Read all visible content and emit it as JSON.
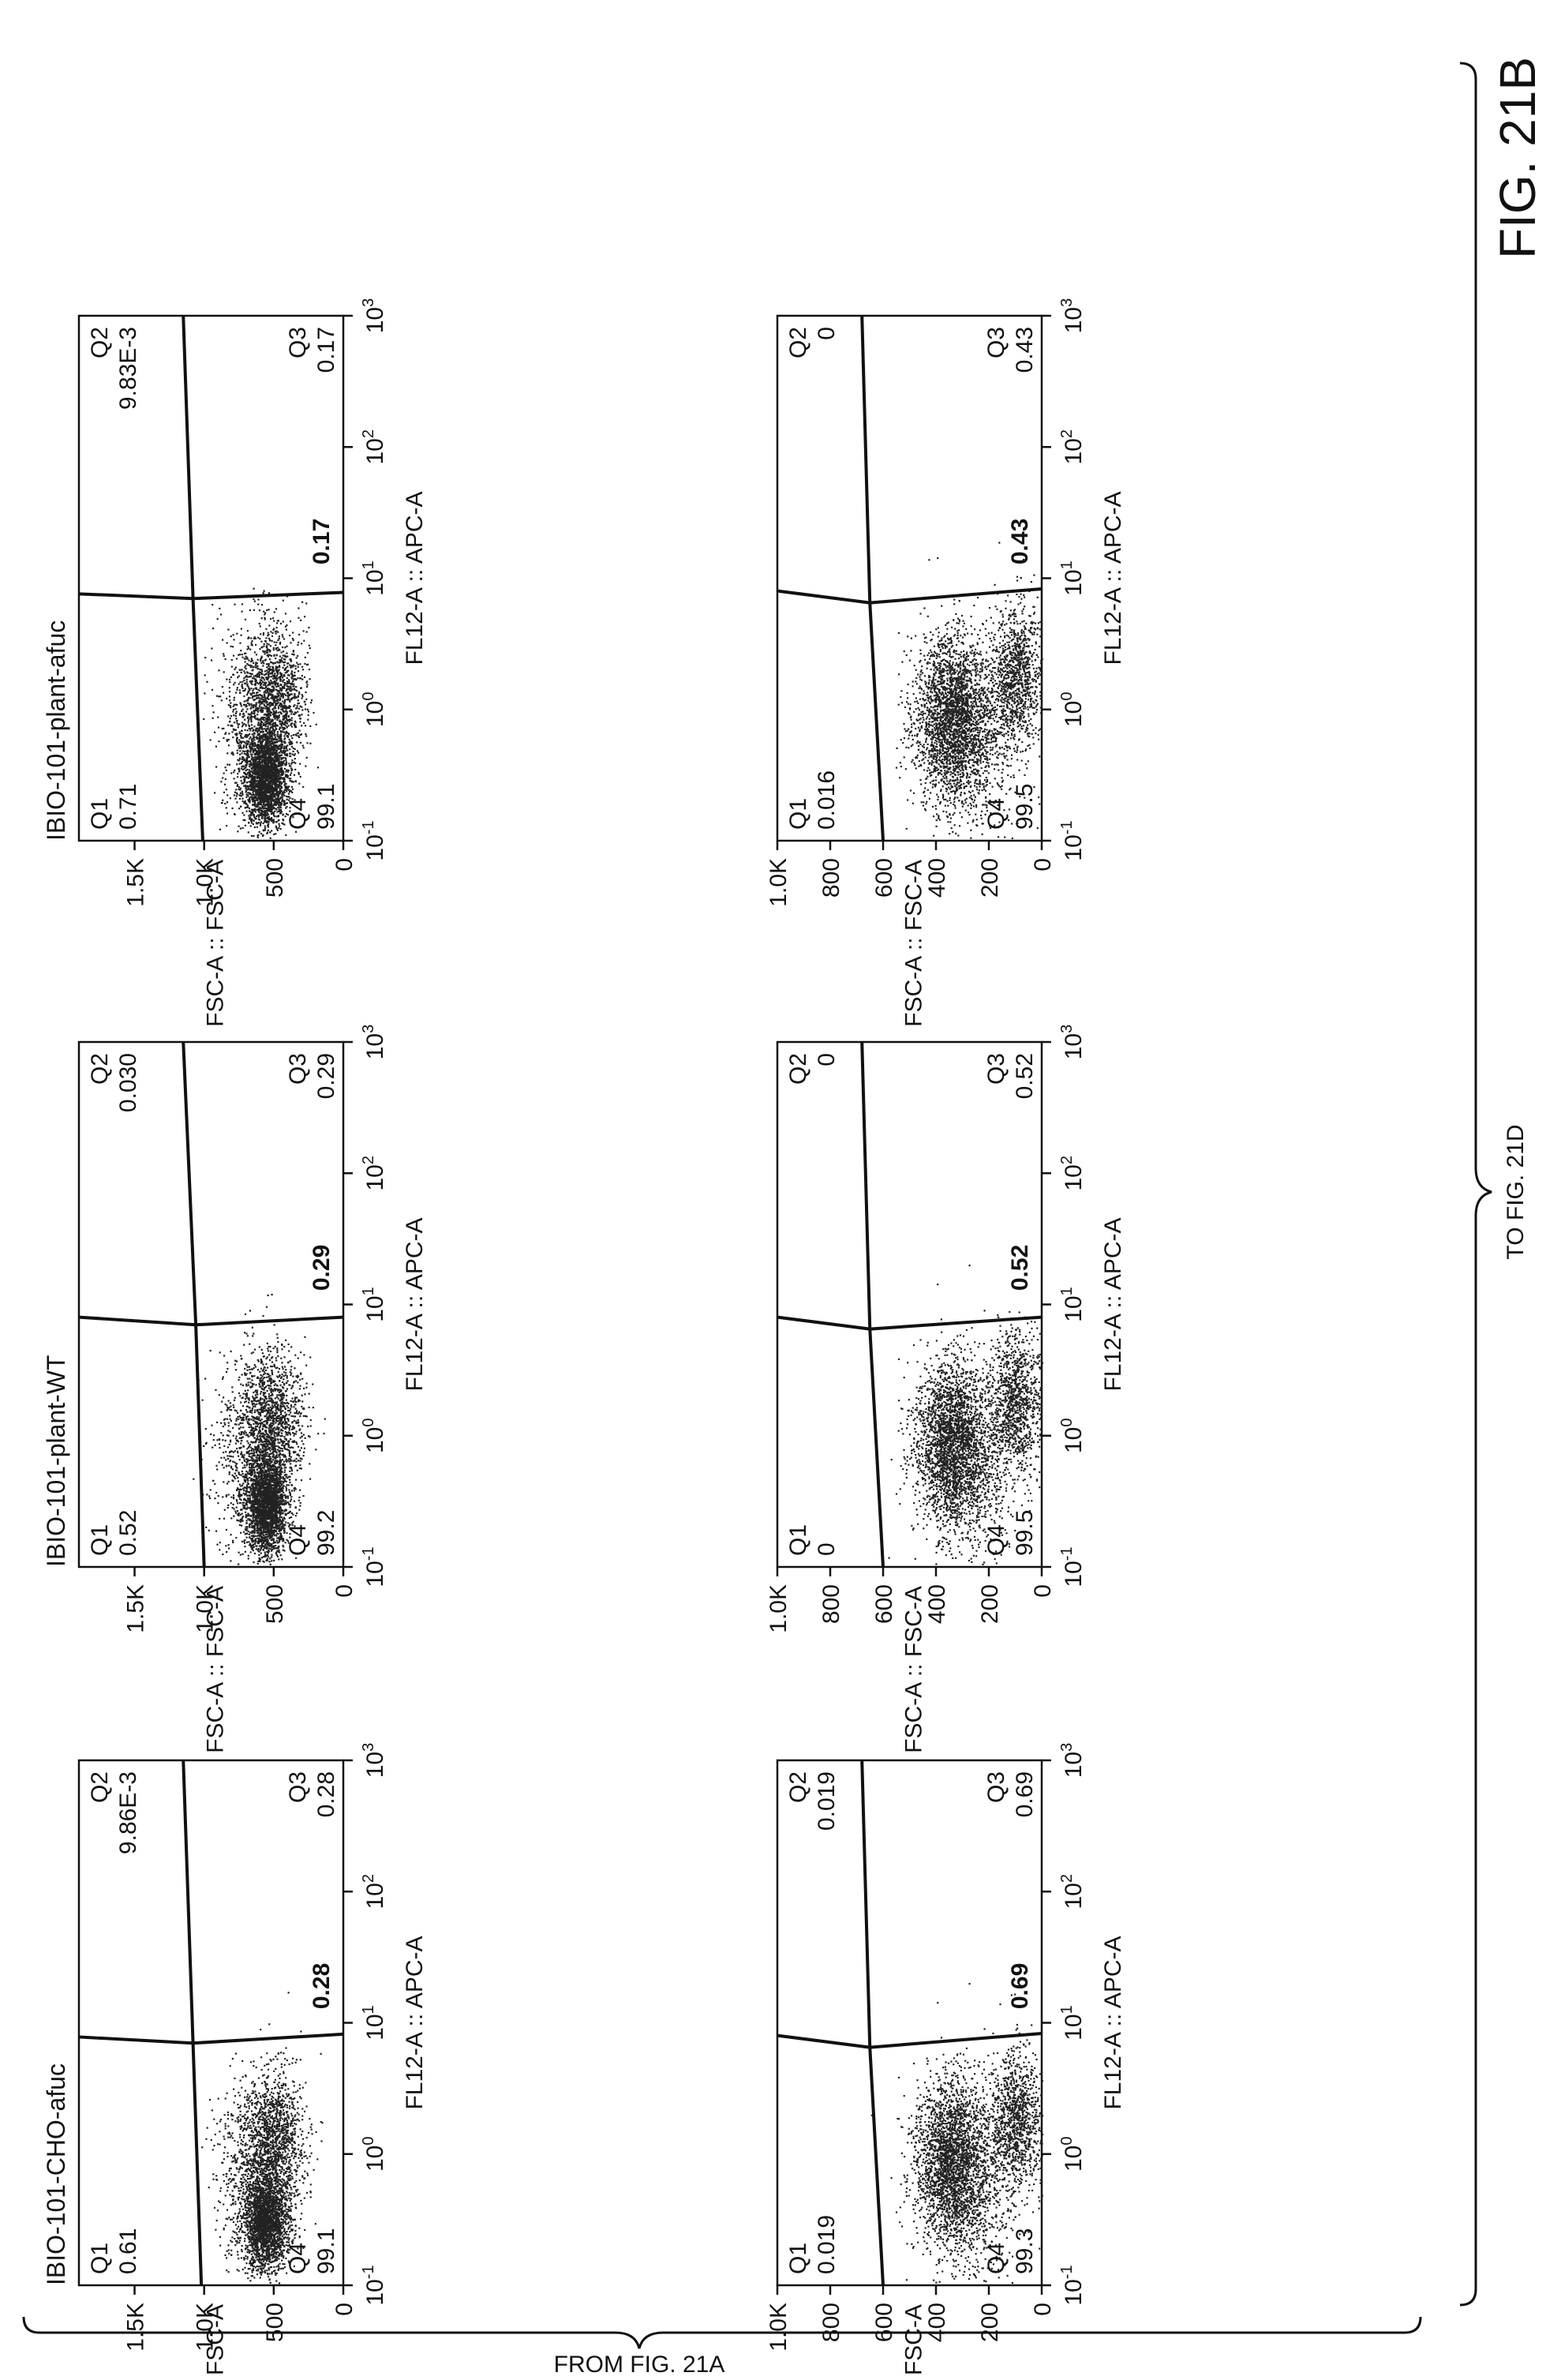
{
  "figure": {
    "label": "FIG. 21B",
    "from_note": "FROM FIG. 21A",
    "to_note": "TO FIG. 21D"
  },
  "chart_data": [
    {
      "type": "scatter",
      "title": "IBIO-101-CHO-afuc",
      "xlabel": "FL12-A :: APC-A",
      "ylabel": "FSC-A :: FSC-A",
      "xscale": "log",
      "xlim": [
        0.1,
        1000
      ],
      "xticks": [
        0.1,
        1,
        10,
        100,
        1000
      ],
      "xtick_labels": [
        {
          "base": "10",
          "exp": "-1"
        },
        {
          "base": "10",
          "exp": "0"
        },
        {
          "base": "10",
          "exp": "1"
        },
        {
          "base": "10",
          "exp": "2"
        },
        {
          "base": "10",
          "exp": "3"
        }
      ],
      "ylim": [
        0,
        1900
      ],
      "yticks": [
        0,
        500,
        1000,
        1500
      ],
      "ytick_labels": [
        "0",
        "500",
        "1.0K",
        "1.5K"
      ],
      "gate": {
        "vertical_top_x": 7.8,
        "vertical_bottom_x": 8.2,
        "center": [
          7.0,
          1080
        ],
        "left_y": 1020,
        "right_y": 1150
      },
      "center_value": "0.28",
      "quadrants": [
        {
          "name": "Q1",
          "value": "0.61",
          "position": "top-left"
        },
        {
          "name": "Q2",
          "value": "9.86E-3",
          "position": "top-right"
        },
        {
          "name": "Q3",
          "value": "0.28",
          "position": "bottom-right"
        },
        {
          "name": "Q4",
          "value": "99.1",
          "position": "bottom-left"
        }
      ],
      "clusters": [
        {
          "x": 0.3,
          "y": 560,
          "sx": 0.2,
          "sy": 80,
          "n": 2200
        },
        {
          "x": 1.2,
          "y": 500,
          "sx": 0.3,
          "sy": 110,
          "n": 1400
        },
        {
          "x": 0.8,
          "y": 700,
          "sx": 0.4,
          "sy": 120,
          "n": 500
        }
      ]
    },
    {
      "type": "scatter",
      "title": "IBIO-101-plant-WT",
      "xlabel": "FL12-A :: APC-A",
      "ylabel": "FSC-A :: FSC-A",
      "xscale": "log",
      "xlim": [
        0.1,
        1000
      ],
      "xticks": [
        0.1,
        1,
        10,
        100,
        1000
      ],
      "xtick_labels": [
        {
          "base": "10",
          "exp": "-1"
        },
        {
          "base": "10",
          "exp": "0"
        },
        {
          "base": "10",
          "exp": "1"
        },
        {
          "base": "10",
          "exp": "2"
        },
        {
          "base": "10",
          "exp": "3"
        }
      ],
      "ylim": [
        0,
        1900
      ],
      "yticks": [
        0,
        500,
        1000,
        1500
      ],
      "ytick_labels": [
        "0",
        "500",
        "1.0K",
        "1.5K"
      ],
      "gate": {
        "vertical_top_x": 8.0,
        "vertical_bottom_x": 8.0,
        "center": [
          7.0,
          1060
        ],
        "left_y": 1000,
        "right_y": 1150
      },
      "center_value": "0.29",
      "quadrants": [
        {
          "name": "Q1",
          "value": "0.52",
          "position": "top-left"
        },
        {
          "name": "Q2",
          "value": "0.030",
          "position": "top-right"
        },
        {
          "name": "Q3",
          "value": "0.29",
          "position": "bottom-right"
        },
        {
          "name": "Q4",
          "value": "99.2",
          "position": "bottom-left"
        }
      ],
      "clusters": [
        {
          "x": 0.3,
          "y": 560,
          "sx": 0.2,
          "sy": 80,
          "n": 2400
        },
        {
          "x": 1.3,
          "y": 510,
          "sx": 0.3,
          "sy": 110,
          "n": 1300
        },
        {
          "x": 0.9,
          "y": 720,
          "sx": 0.4,
          "sy": 120,
          "n": 500
        }
      ]
    },
    {
      "type": "scatter",
      "title": "IBIO-101-plant-afuc",
      "xlabel": "FL12-A :: APC-A",
      "ylabel": "FSC-A :: FSC-A",
      "xscale": "log",
      "xlim": [
        0.1,
        1000
      ],
      "xticks": [
        0.1,
        1,
        10,
        100,
        1000
      ],
      "xtick_labels": [
        {
          "base": "10",
          "exp": "-1"
        },
        {
          "base": "10",
          "exp": "0"
        },
        {
          "base": "10",
          "exp": "1"
        },
        {
          "base": "10",
          "exp": "2"
        },
        {
          "base": "10",
          "exp": "3"
        }
      ],
      "ylim": [
        0,
        1900
      ],
      "yticks": [
        0,
        500,
        1000,
        1500
      ],
      "ytick_labels": [
        "0",
        "500",
        "1.0K",
        "1.5K"
      ],
      "gate": {
        "vertical_top_x": 7.6,
        "vertical_bottom_x": 7.8,
        "center": [
          7.0,
          1080
        ],
        "left_y": 1010,
        "right_y": 1150
      },
      "center_value": "0.17",
      "quadrants": [
        {
          "name": "Q1",
          "value": "0.71",
          "position": "top-left"
        },
        {
          "name": "Q2",
          "value": "9.83E-3",
          "position": "top-right"
        },
        {
          "name": "Q3",
          "value": "0.17",
          "position": "bottom-right"
        },
        {
          "name": "Q4",
          "value": "99.1",
          "position": "bottom-left"
        }
      ],
      "clusters": [
        {
          "x": 0.3,
          "y": 560,
          "sx": 0.2,
          "sy": 80,
          "n": 2200
        },
        {
          "x": 1.2,
          "y": 500,
          "sx": 0.3,
          "sy": 110,
          "n": 1400
        },
        {
          "x": 0.8,
          "y": 700,
          "sx": 0.4,
          "sy": 120,
          "n": 500
        }
      ]
    },
    {
      "type": "scatter",
      "title": "",
      "xlabel": "FL12-A :: APC-A",
      "ylabel": "FSC-A :: FSC-A",
      "xscale": "log",
      "xlim": [
        0.1,
        1000
      ],
      "xticks": [
        0.1,
        1,
        10,
        100,
        1000
      ],
      "xtick_labels": [
        {
          "base": "10",
          "exp": "-1"
        },
        {
          "base": "10",
          "exp": "0"
        },
        {
          "base": "10",
          "exp": "1"
        },
        {
          "base": "10",
          "exp": "2"
        },
        {
          "base": "10",
          "exp": "3"
        }
      ],
      "ylim": [
        0,
        1000
      ],
      "yticks": [
        0,
        200,
        400,
        600,
        800,
        1000
      ],
      "ytick_labels": [
        "0",
        "200",
        "400",
        "600",
        "800",
        "1.0K"
      ],
      "gate": {
        "vertical_top_x": 8.0,
        "vertical_bottom_x": 8.3,
        "center": [
          6.5,
          650
        ],
        "left_y": 600,
        "right_y": 680
      },
      "center_value": "0.69",
      "quadrants": [
        {
          "name": "Q1",
          "value": "0.019",
          "position": "top-left"
        },
        {
          "name": "Q2",
          "value": "0.019",
          "position": "top-right"
        },
        {
          "name": "Q3",
          "value": "0.69",
          "position": "bottom-right"
        },
        {
          "name": "Q4",
          "value": "99.3",
          "position": "bottom-left"
        }
      ],
      "clusters": [
        {
          "x": 0.9,
          "y": 340,
          "sx": 0.35,
          "sy": 70,
          "n": 2500
        },
        {
          "x": 1.8,
          "y": 100,
          "sx": 0.3,
          "sy": 50,
          "n": 1100
        },
        {
          "x": 0.5,
          "y": 260,
          "sx": 0.35,
          "sy": 90,
          "n": 500
        }
      ]
    },
    {
      "type": "scatter",
      "title": "",
      "xlabel": "FL12-A :: APC-A",
      "ylabel": "FSC-A :: FSC-A",
      "xscale": "log",
      "xlim": [
        0.1,
        1000
      ],
      "xticks": [
        0.1,
        1,
        10,
        100,
        1000
      ],
      "xtick_labels": [
        {
          "base": "10",
          "exp": "-1"
        },
        {
          "base": "10",
          "exp": "0"
        },
        {
          "base": "10",
          "exp": "1"
        },
        {
          "base": "10",
          "exp": "2"
        },
        {
          "base": "10",
          "exp": "3"
        }
      ],
      "ylim": [
        0,
        1000
      ],
      "yticks": [
        0,
        200,
        400,
        600,
        800,
        1000
      ],
      "ytick_labels": [
        "0",
        "200",
        "400",
        "600",
        "800",
        "1.0K"
      ],
      "gate": {
        "vertical_top_x": 8.0,
        "vertical_bottom_x": 8.0,
        "center": [
          6.5,
          650
        ],
        "left_y": 600,
        "right_y": 680
      },
      "center_value": "0.52",
      "quadrants": [
        {
          "name": "Q1",
          "value": "0",
          "position": "top-left"
        },
        {
          "name": "Q2",
          "value": "0",
          "position": "top-right"
        },
        {
          "name": "Q3",
          "value": "0.52",
          "position": "bottom-right"
        },
        {
          "name": "Q4",
          "value": "99.5",
          "position": "bottom-left"
        }
      ],
      "clusters": [
        {
          "x": 0.9,
          "y": 340,
          "sx": 0.35,
          "sy": 70,
          "n": 2500
        },
        {
          "x": 1.8,
          "y": 100,
          "sx": 0.3,
          "sy": 50,
          "n": 1100
        },
        {
          "x": 0.5,
          "y": 260,
          "sx": 0.35,
          "sy": 90,
          "n": 500
        }
      ]
    },
    {
      "type": "scatter",
      "title": "",
      "xlabel": "FL12-A :: APC-A",
      "ylabel": "FSC-A :: FSC-A",
      "xscale": "log",
      "xlim": [
        0.1,
        1000
      ],
      "xticks": [
        0.1,
        1,
        10,
        100,
        1000
      ],
      "xtick_labels": [
        {
          "base": "10",
          "exp": "-1"
        },
        {
          "base": "10",
          "exp": "0"
        },
        {
          "base": "10",
          "exp": "1"
        },
        {
          "base": "10",
          "exp": "2"
        },
        {
          "base": "10",
          "exp": "3"
        }
      ],
      "ylim": [
        0,
        1000
      ],
      "yticks": [
        0,
        200,
        400,
        600,
        800,
        1000
      ],
      "ytick_labels": [
        "0",
        "200",
        "400",
        "600",
        "800",
        "1.0K"
      ],
      "gate": {
        "vertical_top_x": 8.0,
        "vertical_bottom_x": 8.3,
        "center": [
          6.5,
          650
        ],
        "left_y": 600,
        "right_y": 680
      },
      "center_value": "0.43",
      "quadrants": [
        {
          "name": "Q1",
          "value": "0.016",
          "position": "top-left"
        },
        {
          "name": "Q2",
          "value": "0",
          "position": "top-right"
        },
        {
          "name": "Q3",
          "value": "0.43",
          "position": "bottom-right"
        },
        {
          "name": "Q4",
          "value": "99.5",
          "position": "bottom-left"
        }
      ],
      "clusters": [
        {
          "x": 0.9,
          "y": 340,
          "sx": 0.35,
          "sy": 70,
          "n": 2500
        },
        {
          "x": 1.8,
          "y": 100,
          "sx": 0.3,
          "sy": 50,
          "n": 1100
        },
        {
          "x": 0.5,
          "y": 260,
          "sx": 0.35,
          "sy": 90,
          "n": 500
        }
      ]
    }
  ]
}
